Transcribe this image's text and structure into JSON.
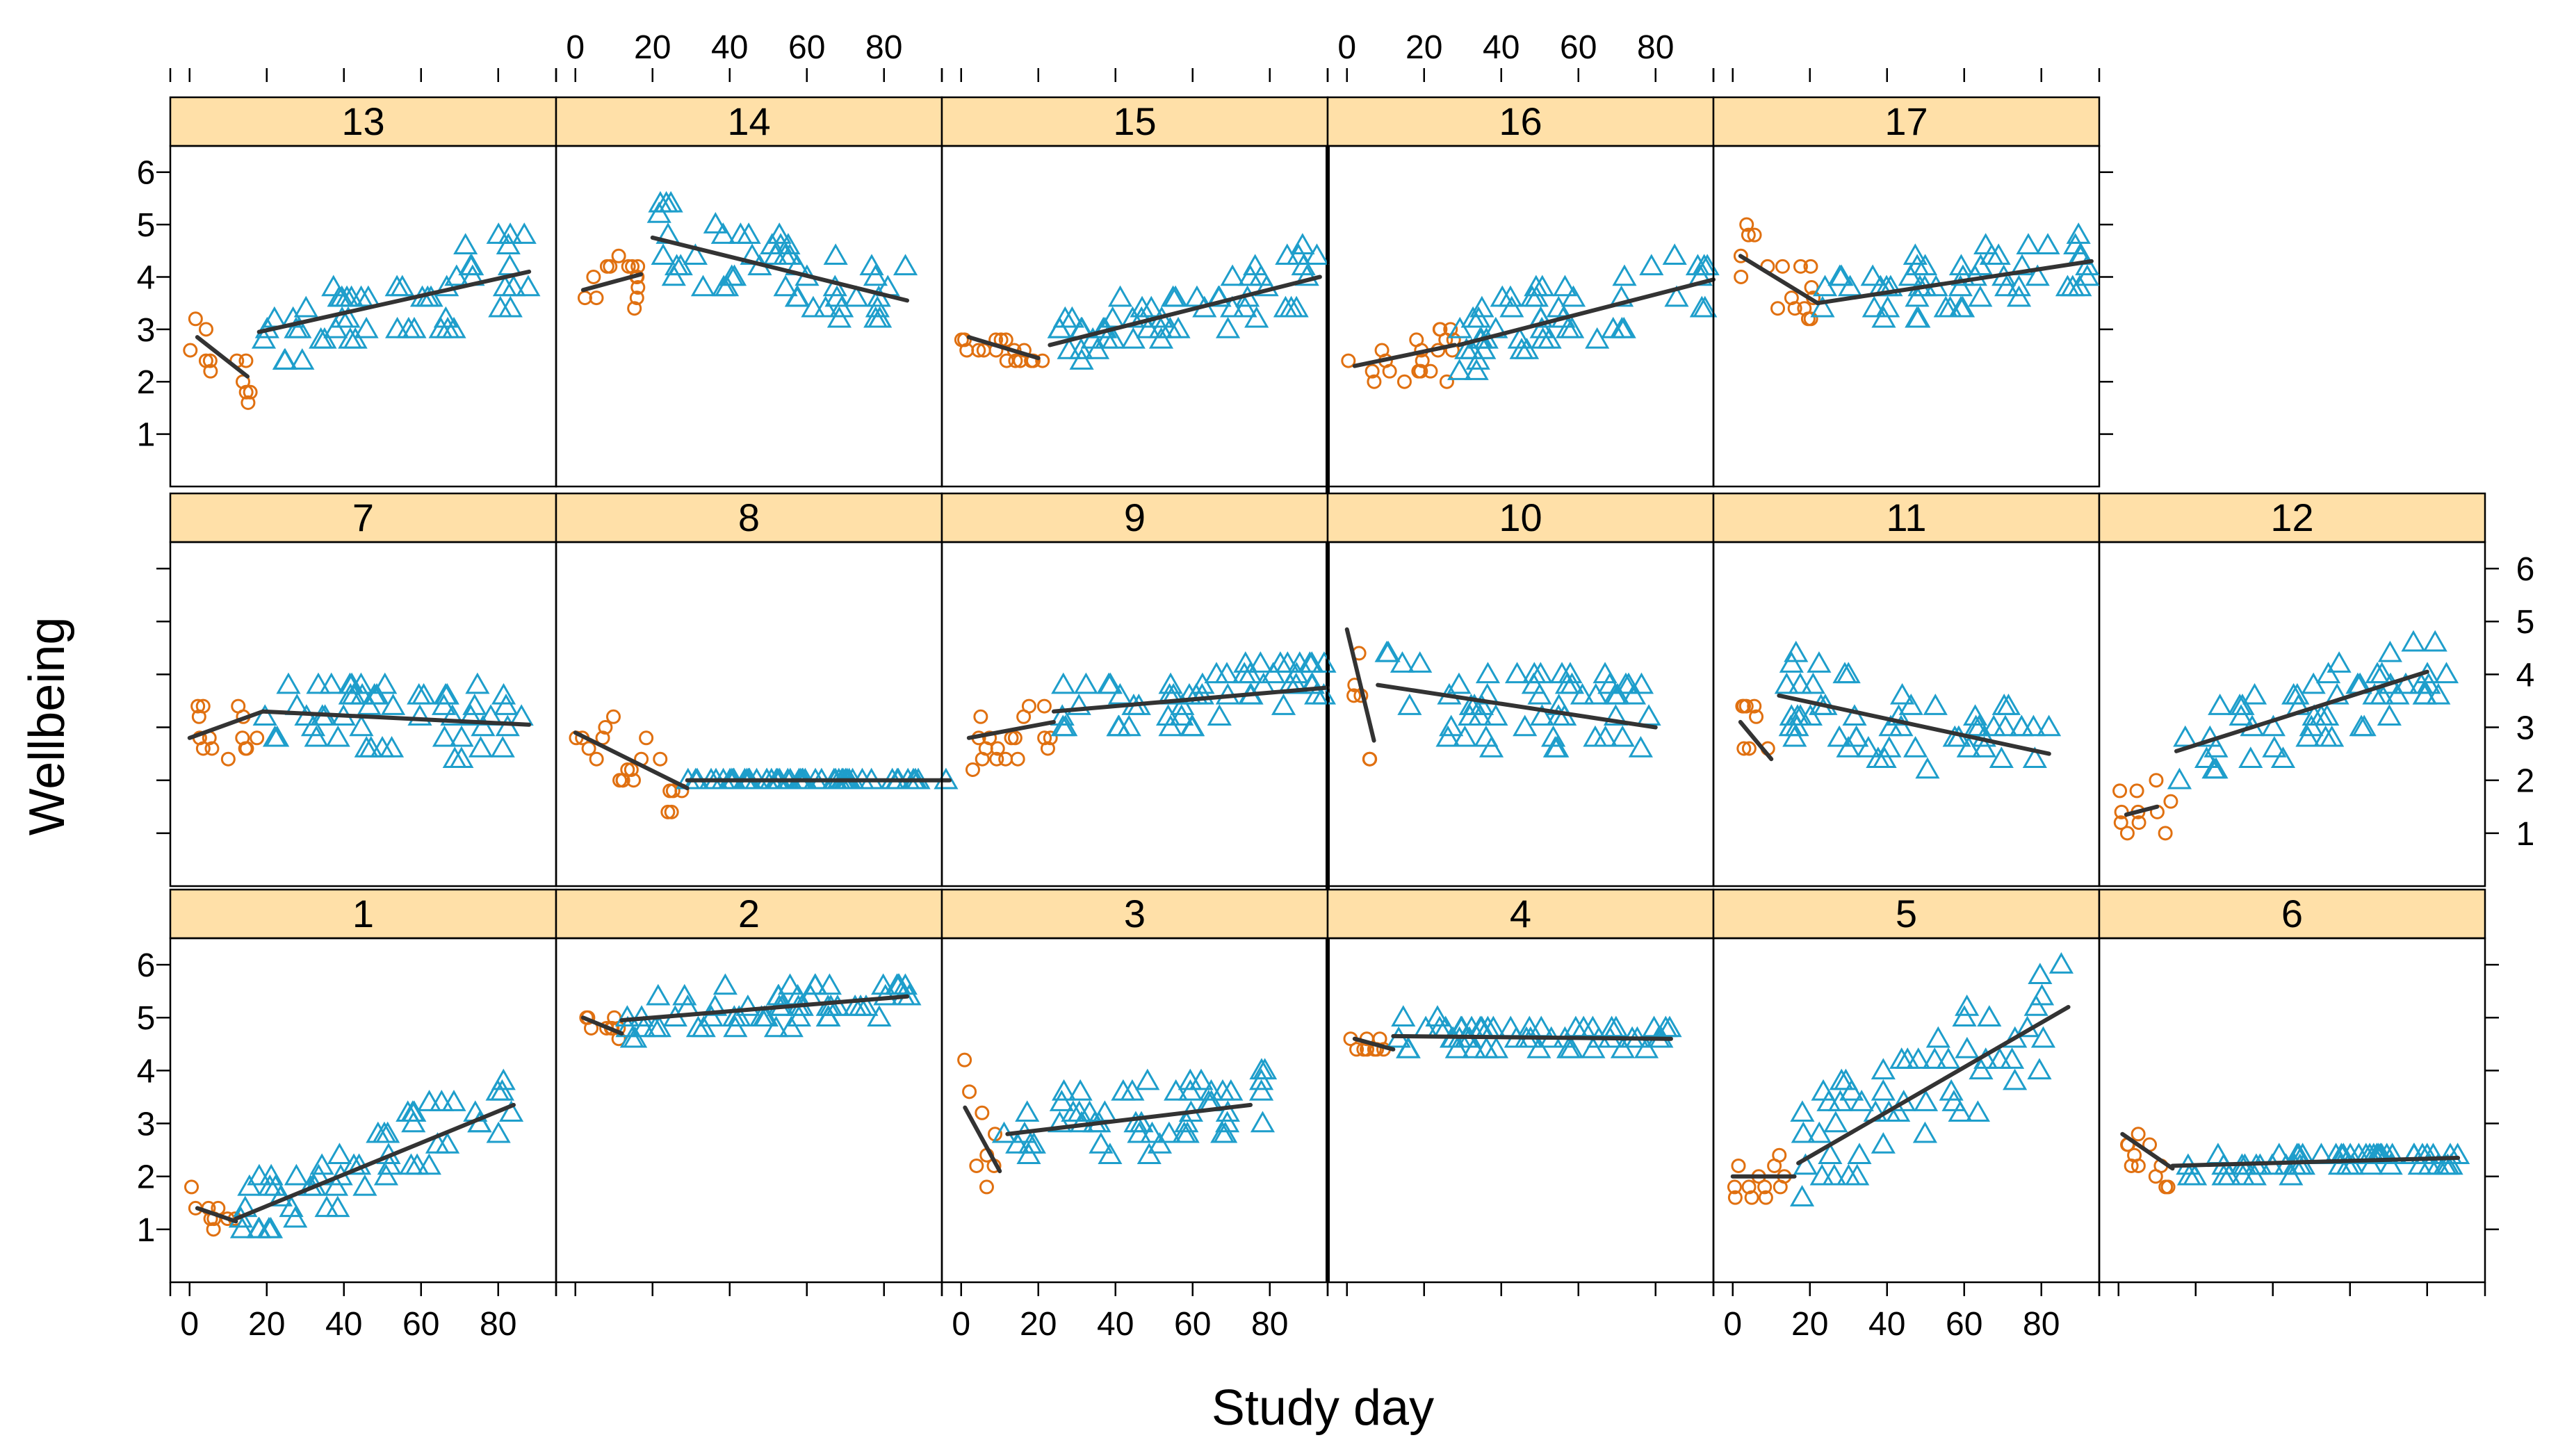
{
  "chart_data": {
    "type": "scatter",
    "layout": "lattice 6x3 small multiples",
    "xlabel": "Study day",
    "ylabel": "Wellbeing",
    "xlim": [
      -5,
      95
    ],
    "ylim": [
      0,
      6.5
    ],
    "x_ticks": [
      0,
      20,
      40,
      60,
      80
    ],
    "x_tick_labels": [
      "0",
      "20",
      "40",
      "60",
      "80"
    ],
    "y_ticks": [
      1,
      2,
      3,
      4,
      5,
      6
    ],
    "y_tick_labels": [
      "1",
      "2",
      "3",
      "4",
      "5",
      "6"
    ],
    "series_styles": {
      "baseline": {
        "marker": "circle",
        "color": "#E07010"
      },
      "intervention": {
        "marker": "triangle",
        "color": "#1E9ECB"
      },
      "trend": {
        "color": "#333333"
      }
    },
    "panels": [
      {
        "id": "13",
        "row": 0,
        "col": 0,
        "baseline": {
          "days": [
            0,
            16
          ],
          "mean": 2.6,
          "spread": 0.45
        },
        "intervention": {
          "days": [
            18,
            88
          ],
          "mean": 3.6,
          "spread": 0.8
        },
        "trend_baseline": [
          [
            2,
            2.85
          ],
          [
            15,
            2.1
          ]
        ],
        "trend_intervention": [
          [
            18,
            2.95
          ],
          [
            88,
            4.1
          ]
        ]
      },
      {
        "id": "14",
        "row": 0,
        "col": 1,
        "baseline": {
          "days": [
            0,
            18
          ],
          "mean": 3.8,
          "spread": 0.6
        },
        "intervention": {
          "days": [
            20,
            86
          ],
          "mean": 4.2,
          "spread": 0.75
        },
        "trend_baseline": [
          [
            2,
            3.75
          ],
          [
            17,
            4.05
          ]
        ],
        "trend_intervention": [
          [
            20,
            4.75
          ],
          [
            86,
            3.55
          ]
        ]
      },
      {
        "id": "15",
        "row": 0,
        "col": 2,
        "baseline": {
          "days": [
            0,
            22
          ],
          "mean": 2.75,
          "spread": 0.25
        },
        "intervention": {
          "days": [
            23,
            93
          ],
          "mean": 3.4,
          "spread": 0.6
        },
        "trend_baseline": [
          [
            2,
            2.85
          ],
          [
            20,
            2.45
          ]
        ],
        "trend_intervention": [
          [
            23,
            2.7
          ],
          [
            93,
            4.0
          ]
        ]
      },
      {
        "id": "16",
        "row": 0,
        "col": 3,
        "baseline": {
          "days": [
            0,
            28
          ],
          "mean": 2.5,
          "spread": 0.65
        },
        "intervention": {
          "days": [
            29,
            95
          ],
          "mean": 3.3,
          "spread": 0.75
        },
        "trend_baseline": [
          [
            2,
            2.3
          ],
          [
            28,
            2.7
          ]
        ],
        "trend_intervention": [
          [
            29,
            2.7
          ],
          [
            95,
            3.95
          ]
        ]
      },
      {
        "id": "17",
        "row": 0,
        "col": 4,
        "baseline": {
          "days": [
            0,
            22
          ],
          "mean": 3.9,
          "spread": 0.7
        },
        "intervention": {
          "days": [
            23,
            93
          ],
          "mean": 3.8,
          "spread": 0.6
        },
        "trend_baseline": [
          [
            2,
            4.4
          ],
          [
            22,
            3.5
          ]
        ],
        "trend_intervention": [
          [
            22,
            3.5
          ],
          [
            93,
            4.3
          ]
        ]
      },
      {
        "id": "7",
        "row": 1,
        "col": 0,
        "baseline": {
          "days": [
            0,
            18
          ],
          "mean": 3.0,
          "spread": 0.7
        },
        "intervention": {
          "days": [
            19,
            88
          ],
          "mean": 3.1,
          "spread": 0.7
        },
        "trend_baseline": [
          [
            0,
            2.8
          ],
          [
            19,
            3.3
          ]
        ],
        "trend_intervention": [
          [
            19,
            3.3
          ],
          [
            88,
            3.05
          ]
        ]
      },
      {
        "id": "8",
        "row": 1,
        "col": 1,
        "baseline": {
          "days": [
            0,
            28
          ],
          "mean": 2.6,
          "spread": 0.6
        },
        "intervention": {
          "days": [
            29,
            97
          ],
          "mean": 2.0,
          "spread": 0.05
        },
        "trend_baseline": [
          [
            0,
            2.9
          ],
          [
            29,
            1.85
          ]
        ],
        "trend_intervention": [
          [
            29,
            2.0
          ],
          [
            97,
            2.0
          ]
        ]
      },
      {
        "id": "9",
        "row": 1,
        "col": 2,
        "baseline": {
          "days": [
            0,
            24
          ],
          "mean": 2.9,
          "spread": 0.6
        },
        "intervention": {
          "days": [
            25,
            95
          ],
          "mean": 3.6,
          "spread": 0.5
        },
        "trend_baseline": [
          [
            2,
            2.8
          ],
          [
            24,
            3.1
          ]
        ],
        "trend_intervention": [
          [
            24,
            3.3
          ],
          [
            95,
            3.75
          ]
        ]
      },
      {
        "id": "10",
        "row": 1,
        "col": 3,
        "baseline": {
          "days": [
            0,
            8
          ],
          "mean": 3.7,
          "spread": 0.7
        },
        "intervention": {
          "days": [
            9,
            80
          ],
          "mean": 3.5,
          "spread": 0.85
        },
        "trend_baseline": [
          [
            0,
            4.85
          ],
          [
            7,
            2.75
          ]
        ],
        "trend_intervention": [
          [
            8,
            3.8
          ],
          [
            80,
            3.0
          ]
        ]
      },
      {
        "id": "11",
        "row": 1,
        "col": 4,
        "baseline": {
          "days": [
            0,
            10
          ],
          "mean": 2.6,
          "spread": 0.6
        },
        "intervention": {
          "days": [
            12,
            82
          ],
          "mean": 3.2,
          "spread": 0.8
        },
        "trend_baseline": [
          [
            2,
            3.1
          ],
          [
            10,
            2.4
          ]
        ],
        "trend_intervention": [
          [
            12,
            3.6
          ],
          [
            82,
            2.5
          ]
        ]
      },
      {
        "id": "12",
        "row": 1,
        "col": 5,
        "baseline": {
          "days": [
            0,
            14
          ],
          "mean": 1.7,
          "spread": 0.6
        },
        "intervention": {
          "days": [
            15,
            85
          ],
          "mean": 3.3,
          "spread": 0.7
        },
        "trend_baseline": [
          [
            2,
            1.35
          ],
          [
            10,
            1.5
          ]
        ],
        "trend_intervention": [
          [
            15,
            2.55
          ],
          [
            80,
            4.05
          ]
        ]
      },
      {
        "id": "1",
        "row": 2,
        "col": 0,
        "baseline": {
          "days": [
            0,
            12
          ],
          "mean": 1.4,
          "spread": 0.3
        },
        "intervention": {
          "days": [
            13,
            85
          ],
          "mean": 2.3,
          "spread": 0.7
        },
        "trend_baseline": [
          [
            2,
            1.4
          ],
          [
            12,
            1.15
          ]
        ],
        "trend_intervention": [
          [
            12,
            1.2
          ],
          [
            84,
            3.35
          ]
        ]
      },
      {
        "id": "2",
        "row": 2,
        "col": 1,
        "baseline": {
          "days": [
            0,
            12
          ],
          "mean": 4.85,
          "spread": 0.25
        },
        "intervention": {
          "days": [
            13,
            88
          ],
          "mean": 5.1,
          "spread": 0.4
        },
        "trend_baseline": [
          [
            2,
            5.0
          ],
          [
            12,
            4.7
          ]
        ],
        "trend_intervention": [
          [
            12,
            4.95
          ],
          [
            86,
            5.4
          ]
        ]
      },
      {
        "id": "3",
        "row": 2,
        "col": 2,
        "baseline": {
          "days": [
            0,
            10
          ],
          "mean": 2.6,
          "spread": 0.8
        },
        "intervention": {
          "days": [
            11,
            80
          ],
          "mean": 2.8,
          "spread": 0.7
        },
        "trend_baseline": [
          [
            1,
            3.3
          ],
          [
            10,
            2.1
          ]
        ],
        "trend_intervention": [
          [
            12,
            2.8
          ],
          [
            75,
            3.35
          ]
        ]
      },
      {
        "id": "4",
        "row": 2,
        "col": 3,
        "baseline": {
          "days": [
            0,
            12
          ],
          "mean": 4.5,
          "spread": 0.2
        },
        "intervention": {
          "days": [
            13,
            85
          ],
          "mean": 4.7,
          "spread": 0.3
        },
        "trend_baseline": [
          [
            2,
            4.6
          ],
          [
            12,
            4.4
          ]
        ],
        "trend_intervention": [
          [
            12,
            4.65
          ],
          [
            84,
            4.6
          ]
        ]
      },
      {
        "id": "5",
        "row": 2,
        "col": 4,
        "baseline": {
          "days": [
            0,
            16
          ],
          "mean": 1.9,
          "spread": 0.45
        },
        "intervention": {
          "days": [
            17,
            90
          ],
          "mean": 3.5,
          "spread": 1.1
        },
        "trend_baseline": [
          [
            0,
            2.0
          ],
          [
            16,
            2.0
          ]
        ],
        "trend_intervention": [
          [
            17,
            2.25
          ],
          [
            87,
            5.2
          ]
        ]
      },
      {
        "id": "6",
        "row": 2,
        "col": 5,
        "baseline": {
          "days": [
            0,
            14
          ],
          "mean": 2.5,
          "spread": 0.5
        },
        "intervention": {
          "days": [
            15,
            90
          ],
          "mean": 2.3,
          "spread": 0.2
        },
        "trend_baseline": [
          [
            1,
            2.8
          ],
          [
            14,
            2.15
          ]
        ],
        "trend_intervention": [
          [
            14,
            2.2
          ],
          [
            88,
            2.35
          ]
        ]
      }
    ]
  }
}
